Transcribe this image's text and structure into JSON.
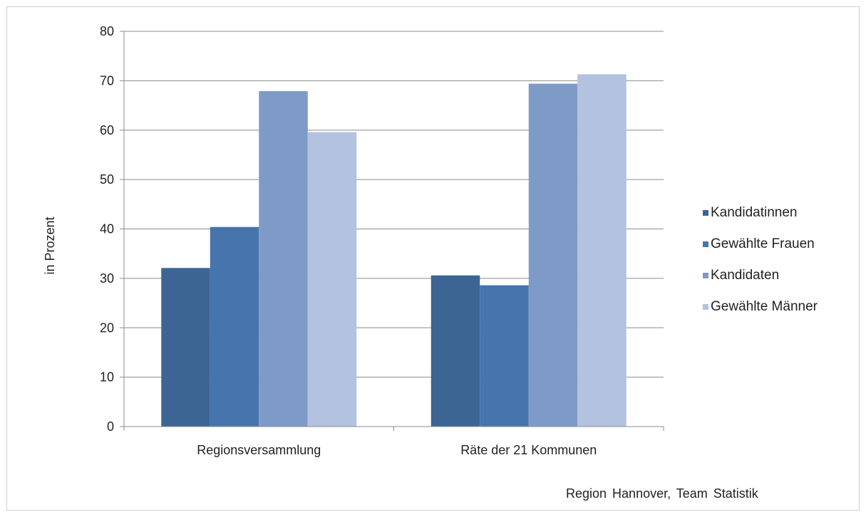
{
  "chart_data": {
    "type": "bar",
    "title": "",
    "ylabel": "in Prozent",
    "xlabel": "",
    "ylim": [
      0,
      80
    ],
    "yticks": [
      0,
      10,
      20,
      30,
      40,
      50,
      60,
      70,
      80
    ],
    "categories": [
      "Regionsversammlung",
      "Räte der 21 Kommunen"
    ],
    "series": [
      {
        "name": "Kandidatinnen",
        "color": "#3c6594",
        "values": [
          32.1,
          30.6
        ]
      },
      {
        "name": "Gewählte Frauen",
        "color": "#4674ac",
        "values": [
          40.4,
          28.6
        ]
      },
      {
        "name": "Kandidaten",
        "color": "#7e9bc8",
        "values": [
          67.9,
          69.4
        ]
      },
      {
        "name": "Gewählte Männer",
        "color": "#b3c2de",
        "values": [
          59.6,
          71.3
        ]
      }
    ],
    "grid": true,
    "legend_position": "right"
  },
  "source": "Region Hannover, Team Statistik"
}
